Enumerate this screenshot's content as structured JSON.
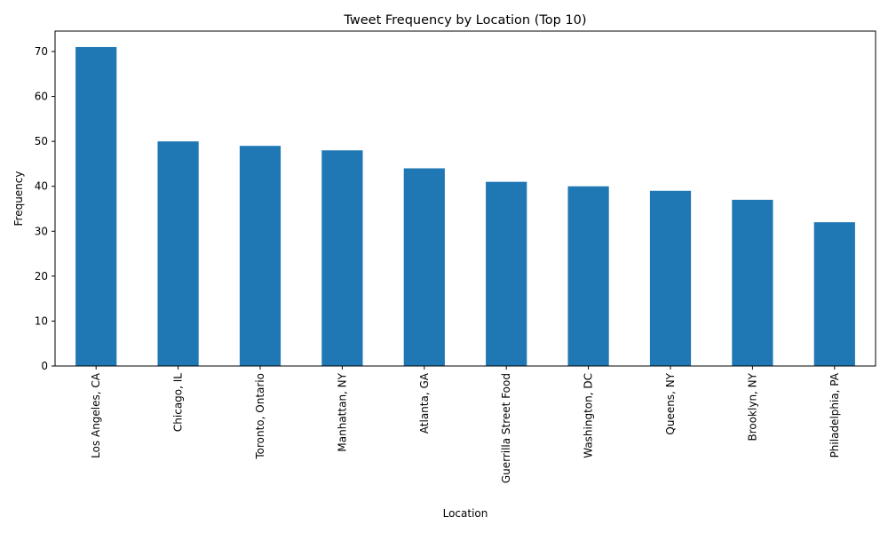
{
  "chart_data": {
    "type": "bar",
    "title": "Tweet Frequency by Location (Top 10)",
    "xlabel": "Location",
    "ylabel": "Frequency",
    "categories": [
      "Los Angeles, CA",
      "Chicago, IL",
      "Toronto, Ontario",
      "Manhattan, NY",
      "Atlanta, GA",
      "Guerrilla Street Food",
      "Washington, DC",
      "Queens, NY",
      "Brooklyn, NY",
      "Philadelphia, PA"
    ],
    "values": [
      71,
      50,
      49,
      48,
      44,
      41,
      40,
      39,
      37,
      32
    ],
    "ylim": [
      0,
      74.55
    ],
    "yticks": [
      0,
      10,
      20,
      30,
      40,
      50,
      60,
      70
    ],
    "ytick_labels": [
      "0",
      "10",
      "20",
      "30",
      "40",
      "50",
      "60",
      "70"
    ],
    "bar_color": "#1f77b4",
    "grid": false,
    "legend": "none"
  }
}
